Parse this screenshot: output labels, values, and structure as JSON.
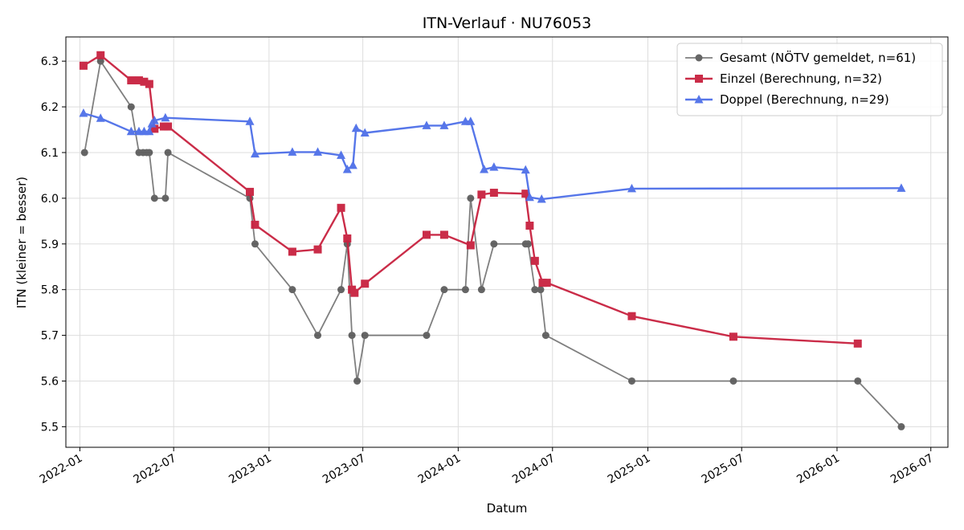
{
  "chart_data": {
    "type": "line",
    "title": "ITN-Verlauf · NU76053",
    "xlabel": "Datum",
    "ylabel": "ITN  (kleiner = besser)",
    "x_type": "date",
    "xlim": [
      "2021-12-05",
      "2026-08-03"
    ],
    "ylim": [
      5.455,
      6.353
    ],
    "x_ticks": [
      "2022-01",
      "2022-07",
      "2023-01",
      "2023-07",
      "2024-01",
      "2024-07",
      "2025-01",
      "2025-07",
      "2026-01",
      "2026-07"
    ],
    "y_ticks": [
      "5.5",
      "5.6",
      "5.7",
      "5.8",
      "5.9",
      "6.0",
      "6.1",
      "6.2",
      "6.3"
    ],
    "grid": true,
    "legend_position": "top-right",
    "series": [
      {
        "name": "Gesamt (NÖTV gemeldet, n=61)",
        "color": "#555555",
        "marker": "circle",
        "points": [
          [
            "2022-01-10",
            6.1
          ],
          [
            "2022-02-10",
            6.3
          ],
          [
            "2022-04-10",
            6.2
          ],
          [
            "2022-04-25",
            6.1
          ],
          [
            "2022-05-03",
            6.1
          ],
          [
            "2022-05-10",
            6.1
          ],
          [
            "2022-05-15",
            6.1
          ],
          [
            "2022-05-25",
            6.0
          ],
          [
            "2022-06-15",
            6.0
          ],
          [
            "2022-06-20",
            6.1
          ],
          [
            "2022-11-25",
            6.0
          ],
          [
            "2022-12-05",
            5.9
          ],
          [
            "2023-02-15",
            5.8
          ],
          [
            "2023-04-05",
            5.7
          ],
          [
            "2023-05-20",
            5.8
          ],
          [
            "2023-06-01",
            5.9
          ],
          [
            "2023-06-10",
            5.7
          ],
          [
            "2023-06-20",
            5.6
          ],
          [
            "2023-07-05",
            5.7
          ],
          [
            "2023-11-01",
            5.7
          ],
          [
            "2023-12-05",
            5.8
          ],
          [
            "2024-01-15",
            5.8
          ],
          [
            "2024-01-25",
            6.0
          ],
          [
            "2024-02-15",
            5.8
          ],
          [
            "2024-03-10",
            5.9
          ],
          [
            "2024-05-10",
            5.9
          ],
          [
            "2024-05-15",
            5.9
          ],
          [
            "2024-05-28",
            5.8
          ],
          [
            "2024-06-08",
            5.8
          ],
          [
            "2024-06-18",
            5.7
          ],
          [
            "2024-12-01",
            5.6
          ],
          [
            "2025-06-15",
            5.6
          ],
          [
            "2026-02-10",
            5.6
          ],
          [
            "2026-05-05",
            5.5
          ]
        ]
      },
      {
        "name": "Einzel (Berechnung, n=32)",
        "color": "#c8213f",
        "marker": "square",
        "points": [
          [
            "2022-01-08",
            6.29
          ],
          [
            "2022-02-10",
            6.313
          ],
          [
            "2022-04-10",
            6.258
          ],
          [
            "2022-04-25",
            6.258
          ],
          [
            "2022-05-05",
            6.255
          ],
          [
            "2022-05-15",
            6.25
          ],
          [
            "2022-05-25",
            6.152
          ],
          [
            "2022-06-12",
            6.157
          ],
          [
            "2022-06-20",
            6.157
          ],
          [
            "2022-11-25",
            6.014
          ],
          [
            "2022-12-05",
            5.942
          ],
          [
            "2023-02-15",
            5.883
          ],
          [
            "2023-04-05",
            5.888
          ],
          [
            "2023-05-20",
            5.979
          ],
          [
            "2023-06-01",
            5.912
          ],
          [
            "2023-06-10",
            5.8
          ],
          [
            "2023-06-15",
            5.793
          ],
          [
            "2023-07-05",
            5.813
          ],
          [
            "2023-11-01",
            5.92
          ],
          [
            "2023-12-05",
            5.92
          ],
          [
            "2024-01-25",
            5.897
          ],
          [
            "2024-02-15",
            6.008
          ],
          [
            "2024-03-10",
            6.012
          ],
          [
            "2024-05-10",
            6.01
          ],
          [
            "2024-05-18",
            5.94
          ],
          [
            "2024-05-28",
            5.863
          ],
          [
            "2024-06-12",
            5.815
          ],
          [
            "2024-06-20",
            5.815
          ],
          [
            "2024-12-01",
            5.742
          ],
          [
            "2025-06-15",
            5.697
          ],
          [
            "2026-02-10",
            5.682
          ]
        ]
      },
      {
        "name": "Doppel (Berechnung, n=29)",
        "color": "#4e6fe8",
        "marker": "triangle",
        "points": [
          [
            "2022-01-08",
            6.186
          ],
          [
            "2022-02-10",
            6.175
          ],
          [
            "2022-04-10",
            6.146
          ],
          [
            "2022-04-25",
            6.146
          ],
          [
            "2022-05-05",
            6.146
          ],
          [
            "2022-05-15",
            6.146
          ],
          [
            "2022-05-20",
            6.163
          ],
          [
            "2022-05-25",
            6.17
          ],
          [
            "2022-06-15",
            6.176
          ],
          [
            "2022-11-25",
            6.168
          ],
          [
            "2022-12-05",
            6.097
          ],
          [
            "2023-02-15",
            6.101
          ],
          [
            "2023-04-05",
            6.101
          ],
          [
            "2023-05-20",
            6.094
          ],
          [
            "2023-06-01",
            6.063
          ],
          [
            "2023-06-12",
            6.072
          ],
          [
            "2023-06-18",
            6.153
          ],
          [
            "2023-07-05",
            6.143
          ],
          [
            "2023-11-01",
            6.159
          ],
          [
            "2023-12-05",
            6.159
          ],
          [
            "2024-01-15",
            6.168
          ],
          [
            "2024-01-25",
            6.168
          ],
          [
            "2024-02-20",
            6.063
          ],
          [
            "2024-03-10",
            6.068
          ],
          [
            "2024-05-10",
            6.062
          ],
          [
            "2024-05-18",
            6.002
          ],
          [
            "2024-06-10",
            5.998
          ],
          [
            "2024-12-01",
            6.021
          ],
          [
            "2026-05-05",
            6.022
          ]
        ]
      }
    ]
  }
}
